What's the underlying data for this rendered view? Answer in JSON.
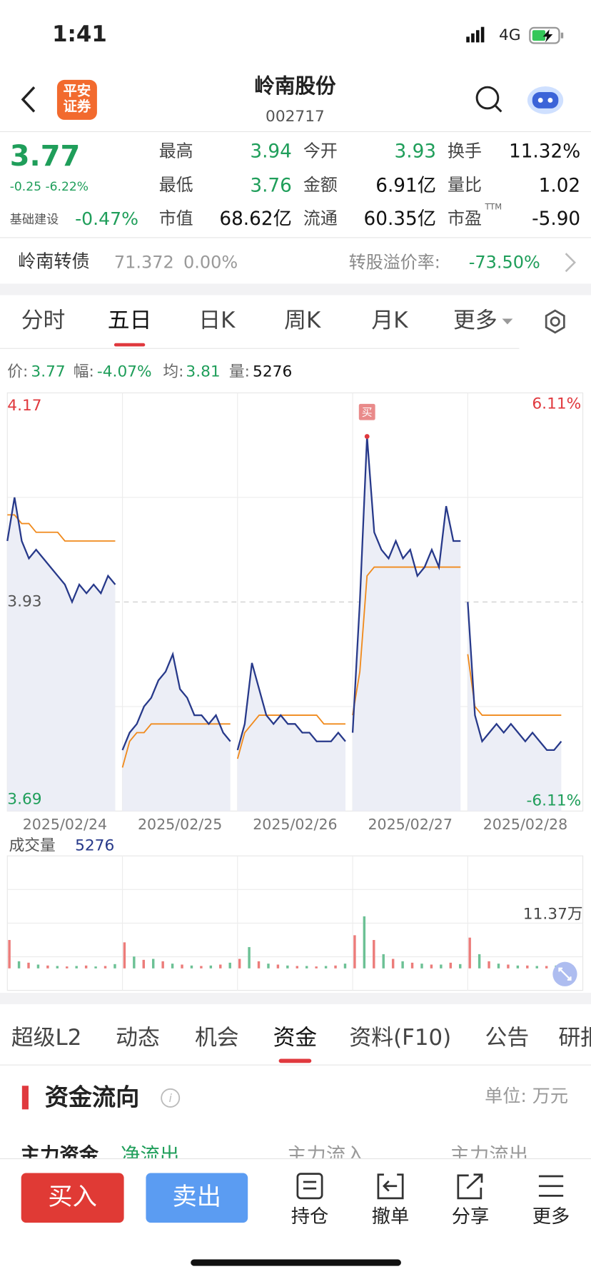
{
  "status_bar": {
    "time": "1:41",
    "network": "4G"
  },
  "header": {
    "logo": [
      "平安",
      "证券"
    ],
    "title": "岭南股份",
    "code": "002717"
  },
  "quote": {
    "price": "3.77",
    "change": "-0.25 -6.22%",
    "sector": "基础建设",
    "sector_change": "-0.47%",
    "fields": [
      {
        "label": "最高",
        "value": "3.94",
        "color": "#1f9e5a"
      },
      {
        "label": "今开",
        "value": "3.93",
        "color": "#1f9e5a"
      },
      {
        "label": "换手",
        "value": "11.32%"
      },
      {
        "label": "最低",
        "value": "3.76",
        "color": "#1f9e5a"
      },
      {
        "label": "金额",
        "value": "6.91亿"
      },
      {
        "label": "量比",
        "value": "1.02"
      },
      {
        "label": "市值",
        "value": "68.62亿"
      },
      {
        "label": "流通",
        "value": "60.35亿"
      },
      {
        "label": "市盈",
        "sup": "TTM",
        "value": "-5.90"
      }
    ]
  },
  "bond": {
    "name": "岭南转债",
    "price": "71.372",
    "change": "0.00%",
    "premium_label": "转股溢价率:",
    "premium": "-73.50%"
  },
  "chart_tabs": {
    "items": [
      "分时",
      "五日",
      "日K",
      "周K",
      "月K",
      "更多"
    ],
    "active": 1
  },
  "info": {
    "price_label": "价:",
    "price": "3.77",
    "range_label": "幅:",
    "range": "-4.07%",
    "avg_label": "均:",
    "avg": "3.81",
    "vol_label": "量:",
    "vol": "5276"
  },
  "chart_data": {
    "type": "line",
    "ylim": [
      3.69,
      4.17
    ],
    "yticks": [
      3.69,
      3.93,
      4.17
    ],
    "reference": 3.93,
    "y2lim": [
      -6.11,
      6.11
    ],
    "y2ticks": [
      {
        "value": -6.11,
        "label": "-6.11%"
      },
      {
        "value": 6.11,
        "label": "6.11%"
      }
    ],
    "price_color": "#27398a",
    "average_color": "#f08a1c",
    "up_color": "#e0393e",
    "down_color": "#1f9e5a",
    "grid": true,
    "marker": "买",
    "days": [
      {
        "label": "2025/02/24",
        "price": [
          4.0,
          4.05,
          4.0,
          3.98,
          3.99,
          3.98,
          3.97,
          3.96,
          3.95,
          3.93,
          3.95,
          3.94,
          3.95,
          3.94,
          3.96,
          3.95
        ],
        "average": [
          4.03,
          4.03,
          4.02,
          4.02,
          4.01,
          4.01,
          4.01,
          4.01,
          4.0,
          4.0,
          4.0,
          4.0,
          4.0,
          4.0,
          4.0,
          4.0
        ],
        "volume": [
          60000,
          15000,
          12000,
          8000,
          6000,
          5000,
          4000,
          5000,
          6000,
          4000,
          5000,
          9000
        ]
      },
      {
        "label": "2025/02/25",
        "price": [
          3.76,
          3.78,
          3.79,
          3.81,
          3.82,
          3.84,
          3.85,
          3.87,
          3.83,
          3.82,
          3.8,
          3.8,
          3.79,
          3.8,
          3.78,
          3.77
        ],
        "average": [
          3.74,
          3.77,
          3.78,
          3.78,
          3.79,
          3.79,
          3.79,
          3.79,
          3.79,
          3.79,
          3.79,
          3.79,
          3.79,
          3.79,
          3.79,
          3.79
        ],
        "volume": [
          55000,
          25000,
          18000,
          20000,
          15000,
          10000,
          8000,
          6000,
          5000,
          6000,
          8000,
          12000
        ]
      },
      {
        "label": "2025/02/26",
        "price": [
          3.76,
          3.79,
          3.86,
          3.83,
          3.8,
          3.79,
          3.8,
          3.79,
          3.79,
          3.78,
          3.78,
          3.77,
          3.77,
          3.77,
          3.78,
          3.77
        ],
        "average": [
          3.75,
          3.78,
          3.79,
          3.8,
          3.8,
          3.8,
          3.8,
          3.8,
          3.8,
          3.8,
          3.8,
          3.8,
          3.79,
          3.79,
          3.79,
          3.79
        ],
        "volume": [
          20000,
          45000,
          15000,
          10000,
          8000,
          6000,
          5000,
          5000,
          4000,
          5000,
          6000,
          10000
        ]
      },
      {
        "label": "2025/02/27",
        "price": [
          3.78,
          3.93,
          4.12,
          4.01,
          3.99,
          3.98,
          4.0,
          3.98,
          3.99,
          3.96,
          3.97,
          3.99,
          3.97,
          4.04,
          4.0,
          4.0
        ],
        "average": [
          3.8,
          3.85,
          3.96,
          3.97,
          3.97,
          3.97,
          3.97,
          3.97,
          3.97,
          3.97,
          3.97,
          3.97,
          3.97,
          3.97,
          3.97,
          3.97
        ],
        "volume": [
          70000,
          110000,
          60000,
          30000,
          20000,
          15000,
          12000,
          10000,
          8000,
          8000,
          12000,
          9000
        ]
      },
      {
        "label": "2025/02/28",
        "price": [
          3.93,
          3.8,
          3.77,
          3.78,
          3.79,
          3.78,
          3.79,
          3.78,
          3.77,
          3.78,
          3.77,
          3.76,
          3.76,
          3.77
        ],
        "average": [
          3.87,
          3.81,
          3.8,
          3.8,
          3.8,
          3.8,
          3.8,
          3.8,
          3.8,
          3.8,
          3.8,
          3.8,
          3.8,
          3.8
        ],
        "volume": [
          65000,
          30000,
          15000,
          10000,
          8000,
          6000,
          6000,
          5000,
          5000,
          6000,
          7000
        ]
      }
    ],
    "volume_title": "成交量",
    "volume_value": "5276",
    "volume_max": {
      "value": 113700,
      "label": "11.37万"
    },
    "volume_colors": [
      "#ec7c7a",
      "#6cc195"
    ]
  },
  "content_tabs": {
    "items": [
      "超级L2",
      "动态",
      "机会",
      "资金",
      "资料(F10)",
      "公告",
      "研报"
    ],
    "active": 3
  },
  "section": {
    "title": "资金流向",
    "unit": "单位: 万元",
    "row": [
      "主力资金",
      "净流出",
      "主力流入",
      "主力流出"
    ]
  },
  "bottom_bar": {
    "buy": "买入",
    "sell": "卖出",
    "actions": [
      "持仓",
      "撤单",
      "分享",
      "更多"
    ]
  }
}
